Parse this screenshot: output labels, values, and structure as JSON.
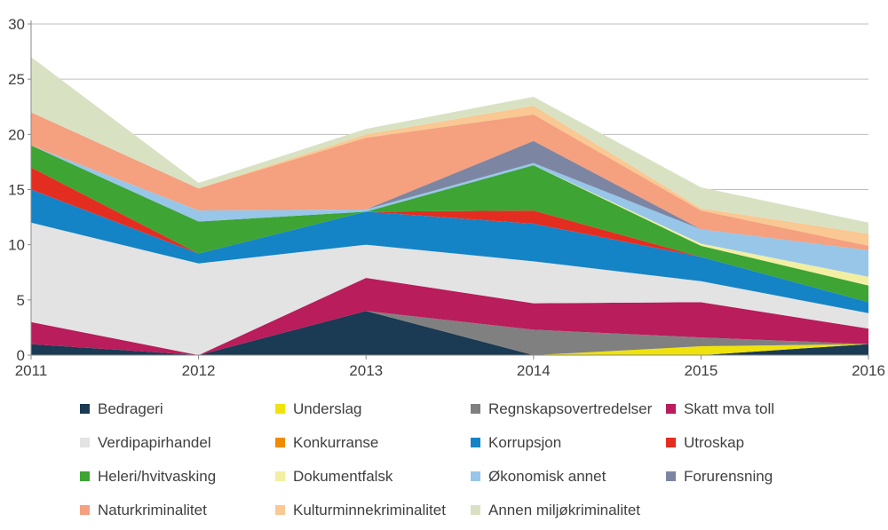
{
  "chart_data": {
    "type": "area",
    "stacked": true,
    "title": "",
    "xlabel": "",
    "ylabel": "",
    "x": [
      2011,
      2012,
      2013,
      2014,
      2015,
      2016
    ],
    "x_tick_labels": [
      "2011",
      "2012",
      "2013",
      "2014",
      "2015",
      "2016"
    ],
    "ylim": [
      0,
      30
    ],
    "yticks": [
      0,
      5,
      10,
      15,
      20,
      25,
      30
    ],
    "y_tick_labels": [
      "0",
      "5",
      "10",
      "15",
      "20",
      "25",
      "30"
    ],
    "grid": true,
    "legend_position": "bottom",
    "series": [
      {
        "name": "Bedrageri",
        "color": "#1B3A54",
        "values": [
          1,
          0,
          4,
          0,
          0,
          1
        ]
      },
      {
        "name": "Underslag",
        "color": "#EFE30B",
        "values": [
          0,
          0,
          0,
          0,
          0.8,
          0
        ]
      },
      {
        "name": "Regnskapsovertredelser",
        "color": "#808080",
        "values": [
          0,
          0,
          0,
          2.3,
          0.8,
          0
        ]
      },
      {
        "name": "Skatt mva toll",
        "color": "#B91D5B",
        "values": [
          2,
          0,
          3,
          2.4,
          3.2,
          1.4
        ]
      },
      {
        "name": "Verdipapirhandel",
        "color": "#E3E3E3",
        "values": [
          9,
          8.3,
          3,
          3.8,
          1.9,
          1.4
        ]
      },
      {
        "name": "Konkurranse",
        "color": "#F08B00",
        "values": [
          0,
          0,
          0,
          0,
          0,
          0
        ]
      },
      {
        "name": "Korrupsjon",
        "color": "#1484C6",
        "values": [
          3,
          0.9,
          3,
          3.4,
          2.2,
          1
        ]
      },
      {
        "name": "Utroskap",
        "color": "#E42D21",
        "values": [
          2,
          0,
          0,
          1.2,
          0,
          0
        ]
      },
      {
        "name": "Heleri/hvitvasking",
        "color": "#3EA434",
        "values": [
          2,
          2.9,
          0,
          4.1,
          1,
          1.5
        ]
      },
      {
        "name": "Dokumentfalsk",
        "color": "#F2EFA3",
        "values": [
          0,
          0,
          0,
          0,
          0.2,
          0.8
        ]
      },
      {
        "name": "Økonomisk annet",
        "color": "#97C6E9",
        "values": [
          0,
          1,
          0.2,
          0.2,
          1.3,
          2.4
        ]
      },
      {
        "name": "Forurensning",
        "color": "#7C86A3",
        "values": [
          0,
          0,
          0,
          2,
          0,
          0
        ]
      },
      {
        "name": "Naturkriminalitet",
        "color": "#F5A07F",
        "values": [
          3,
          2,
          6.5,
          2.4,
          1.7,
          0.4
        ]
      },
      {
        "name": "Kulturminnekriminalitet",
        "color": "#F9C893",
        "values": [
          0,
          0,
          0.3,
          0.8,
          0.2,
          1.1
        ]
      },
      {
        "name": "Annen miljøkriminalitet",
        "color": "#D8E2C3",
        "values": [
          5,
          0.5,
          0.5,
          0.8,
          1.9,
          1
        ]
      }
    ],
    "style": {
      "gridline_color": "#BFBFBF",
      "axis_color": "#898989",
      "tick_label_color": "#404040",
      "background": "#FFFFFF"
    }
  }
}
